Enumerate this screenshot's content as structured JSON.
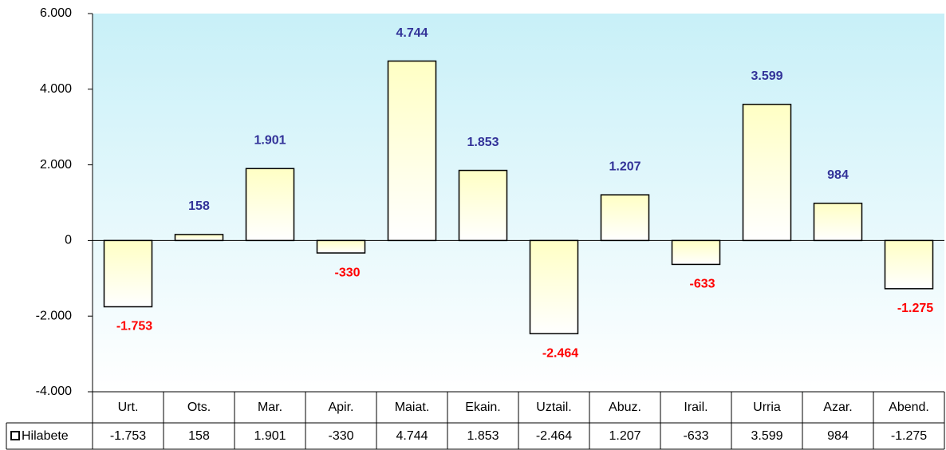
{
  "chart_data": {
    "type": "bar",
    "categories": [
      "Urt.",
      "Ots.",
      "Mar.",
      "Apir.",
      "Maiat.",
      "Ekain.",
      "Uztail.",
      "Abuz.",
      "Irail.",
      "Urria",
      "Azar.",
      "Abend."
    ],
    "series": [
      {
        "name": "Hilabete",
        "color": "#ffffc4",
        "values": [
          -1753,
          158,
          1901,
          -330,
          4744,
          1853,
          -2464,
          1207,
          -633,
          3599,
          984,
          -1275
        ],
        "value_labels": [
          "-1.753",
          "158",
          "1.901",
          "-330",
          "4.744",
          "1.853",
          "-2.464",
          "1.207",
          "-633",
          "3.599",
          "984",
          "-1.275"
        ]
      }
    ],
    "positive_label_color": "#333399",
    "negative_label_color": "#ff0000",
    "ylim": [
      -4000,
      6000
    ],
    "yticks": [
      {
        "value": -4000,
        "label": "-4.000"
      },
      {
        "value": -2000,
        "label": "-2.000"
      },
      0,
      {
        "value": 2000,
        "label": "2.000"
      },
      {
        "value": 4000,
        "label": "4.000"
      },
      {
        "value": 6000,
        "label": "6.000"
      }
    ],
    "data_table": true
  }
}
